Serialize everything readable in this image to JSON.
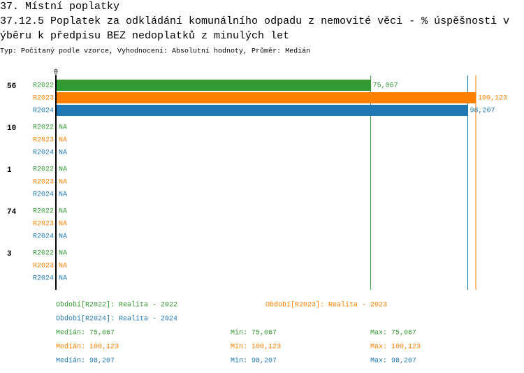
{
  "chart_data": {
    "type": "bar",
    "orientation": "horizontal",
    "title_lines": [
      "37. Místní poplatky",
      "37.12.5 Poplatek za odkládání komunálního odpadu z nemovité věci - % úspěšnosti v",
      "ýběru k předpisu BEZ nedoplatků z minulých let"
    ],
    "subtitle": "Typ: Počítaný podle vzorce, Vyhodnocení: Absolutní hodnoty, Průměr: Medián",
    "categories": [
      "56",
      "10",
      "1",
      "74",
      "3"
    ],
    "xlim": [
      0,
      100.123
    ],
    "xticks": [
      0
    ],
    "series": [
      {
        "name": "R2022",
        "color": "#339933",
        "values": [
          75.067,
          null,
          null,
          null,
          null
        ],
        "value_labels": [
          "75,067",
          "NA",
          "NA",
          "NA",
          "NA"
        ],
        "legend": "Období[R2022]: Realita - 2022",
        "median_label": "Medián: 75,067",
        "min_label": "Min: 75,067",
        "max_label": "Max: 75,067"
      },
      {
        "name": "R2023",
        "color": "#ff8000",
        "values": [
          100.123,
          null,
          null,
          null,
          null
        ],
        "value_labels": [
          "100,123",
          "NA",
          "NA",
          "NA",
          "NA"
        ],
        "legend": "Období[R2023]: Realita - 2023",
        "median_label": "Medián: 100,123",
        "min_label": "Min: 100,123",
        "max_label": "Max: 100,123"
      },
      {
        "name": "R2024",
        "color": "#1f77b4",
        "values": [
          98.207,
          null,
          null,
          null,
          null
        ],
        "value_labels": [
          "98,207",
          "NA",
          "NA",
          "NA",
          "NA"
        ],
        "legend": "Období[R2024]: Realita - 2024",
        "median_label": "Medián: 98,207",
        "min_label": "Min: 98,207",
        "max_label": "Max: 98,207"
      }
    ]
  }
}
